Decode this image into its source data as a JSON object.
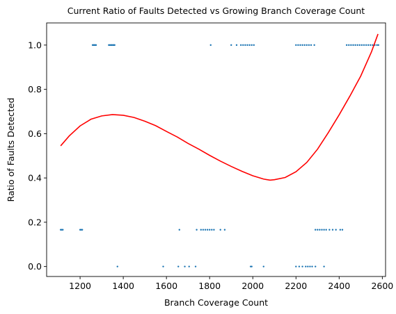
{
  "chart_data": {
    "type": "scatter",
    "title": "Current Ratio of Faults Detected vs Growing Branch Coverage Count",
    "xlabel": "Branch Coverage Count",
    "ylabel": "Ratio of Faults Detected",
    "xlim": [
      1045,
      2615
    ],
    "ylim": [
      -0.045,
      1.1
    ],
    "xticks": [
      1200,
      1400,
      1600,
      1800,
      2000,
      2200,
      2400,
      2600
    ],
    "xtick_labels": [
      "1200",
      "1400",
      "1600",
      "1800",
      "2000",
      "2200",
      "2400",
      "2600"
    ],
    "yticks": [
      0.0,
      0.2,
      0.4,
      0.6,
      0.8,
      1.0
    ],
    "ytick_labels": [
      "0.0",
      "0.2",
      "0.4",
      "0.6",
      "0.8",
      "1.0"
    ],
    "grid": false,
    "colors": {
      "points": "#1f77b4",
      "fit": "#ff0000"
    },
    "series": [
      {
        "kind": "scatter",
        "points": [
          [
            1258,
            1
          ],
          [
            1262,
            1
          ],
          [
            1266,
            1
          ],
          [
            1270,
            1
          ],
          [
            1274,
            1
          ],
          [
            1333,
            1
          ],
          [
            1338,
            1
          ],
          [
            1343,
            1
          ],
          [
            1347,
            1
          ],
          [
            1352,
            1
          ],
          [
            1356,
            1
          ],
          [
            1360,
            1
          ],
          [
            1805,
            1
          ],
          [
            1900,
            1
          ],
          [
            1925,
            1
          ],
          [
            1945,
            1
          ],
          [
            1955,
            1
          ],
          [
            1965,
            1
          ],
          [
            1975,
            1
          ],
          [
            1985,
            1
          ],
          [
            1995,
            1
          ],
          [
            2005,
            1
          ],
          [
            2200,
            1
          ],
          [
            2210,
            1
          ],
          [
            2220,
            1
          ],
          [
            2230,
            1
          ],
          [
            2240,
            1
          ],
          [
            2250,
            1
          ],
          [
            2260,
            1
          ],
          [
            2270,
            1
          ],
          [
            2285,
            1
          ],
          [
            2435,
            1
          ],
          [
            2445,
            1
          ],
          [
            2455,
            1
          ],
          [
            2465,
            1
          ],
          [
            2475,
            1
          ],
          [
            2485,
            1
          ],
          [
            2495,
            1
          ],
          [
            2505,
            1
          ],
          [
            2515,
            1
          ],
          [
            2525,
            1
          ],
          [
            2535,
            1
          ],
          [
            2545,
            1
          ],
          [
            2555,
            1
          ],
          [
            2565,
            1
          ],
          [
            2575,
            1
          ],
          [
            2582,
            1
          ],
          [
            1110,
            0.166
          ],
          [
            1115,
            0.166
          ],
          [
            1120,
            0.166
          ],
          [
            1200,
            0.166
          ],
          [
            1205,
            0.166
          ],
          [
            1210,
            0.166
          ],
          [
            1660,
            0.166
          ],
          [
            1740,
            0.166
          ],
          [
            1760,
            0.166
          ],
          [
            1770,
            0.166
          ],
          [
            1780,
            0.166
          ],
          [
            1790,
            0.166
          ],
          [
            1800,
            0.166
          ],
          [
            1810,
            0.166
          ],
          [
            1820,
            0.166
          ],
          [
            1850,
            0.166
          ],
          [
            1870,
            0.166
          ],
          [
            2290,
            0.166
          ],
          [
            2300,
            0.166
          ],
          [
            2310,
            0.166
          ],
          [
            2320,
            0.166
          ],
          [
            2330,
            0.166
          ],
          [
            2340,
            0.166
          ],
          [
            2355,
            0.166
          ],
          [
            2370,
            0.166
          ],
          [
            2385,
            0.166
          ],
          [
            2405,
            0.166
          ],
          [
            2415,
            0.166
          ],
          [
            1373,
            0
          ],
          [
            1585,
            0
          ],
          [
            1655,
            0
          ],
          [
            1685,
            0
          ],
          [
            1705,
            0
          ],
          [
            1735,
            0
          ],
          [
            1990,
            0
          ],
          [
            1995,
            0
          ],
          [
            2050,
            0
          ],
          [
            2200,
            0
          ],
          [
            2215,
            0
          ],
          [
            2230,
            0
          ],
          [
            2245,
            0
          ],
          [
            2255,
            0
          ],
          [
            2265,
            0
          ],
          [
            2275,
            0
          ],
          [
            2290,
            0
          ],
          [
            2330,
            0
          ]
        ]
      },
      {
        "kind": "fit-line",
        "points": [
          [
            1110,
            0.545
          ],
          [
            1150,
            0.59
          ],
          [
            1200,
            0.635
          ],
          [
            1250,
            0.665
          ],
          [
            1300,
            0.68
          ],
          [
            1350,
            0.686
          ],
          [
            1400,
            0.683
          ],
          [
            1450,
            0.673
          ],
          [
            1500,
            0.656
          ],
          [
            1550,
            0.636
          ],
          [
            1600,
            0.61
          ],
          [
            1650,
            0.585
          ],
          [
            1700,
            0.556
          ],
          [
            1750,
            0.53
          ],
          [
            1800,
            0.502
          ],
          [
            1850,
            0.476
          ],
          [
            1900,
            0.452
          ],
          [
            1950,
            0.43
          ],
          [
            2000,
            0.41
          ],
          [
            2050,
            0.395
          ],
          [
            2080,
            0.39
          ],
          [
            2100,
            0.392
          ],
          [
            2150,
            0.402
          ],
          [
            2200,
            0.428
          ],
          [
            2250,
            0.47
          ],
          [
            2300,
            0.53
          ],
          [
            2350,
            0.605
          ],
          [
            2400,
            0.685
          ],
          [
            2450,
            0.77
          ],
          [
            2500,
            0.86
          ],
          [
            2550,
            0.97
          ],
          [
            2580,
            1.05
          ]
        ]
      }
    ]
  }
}
